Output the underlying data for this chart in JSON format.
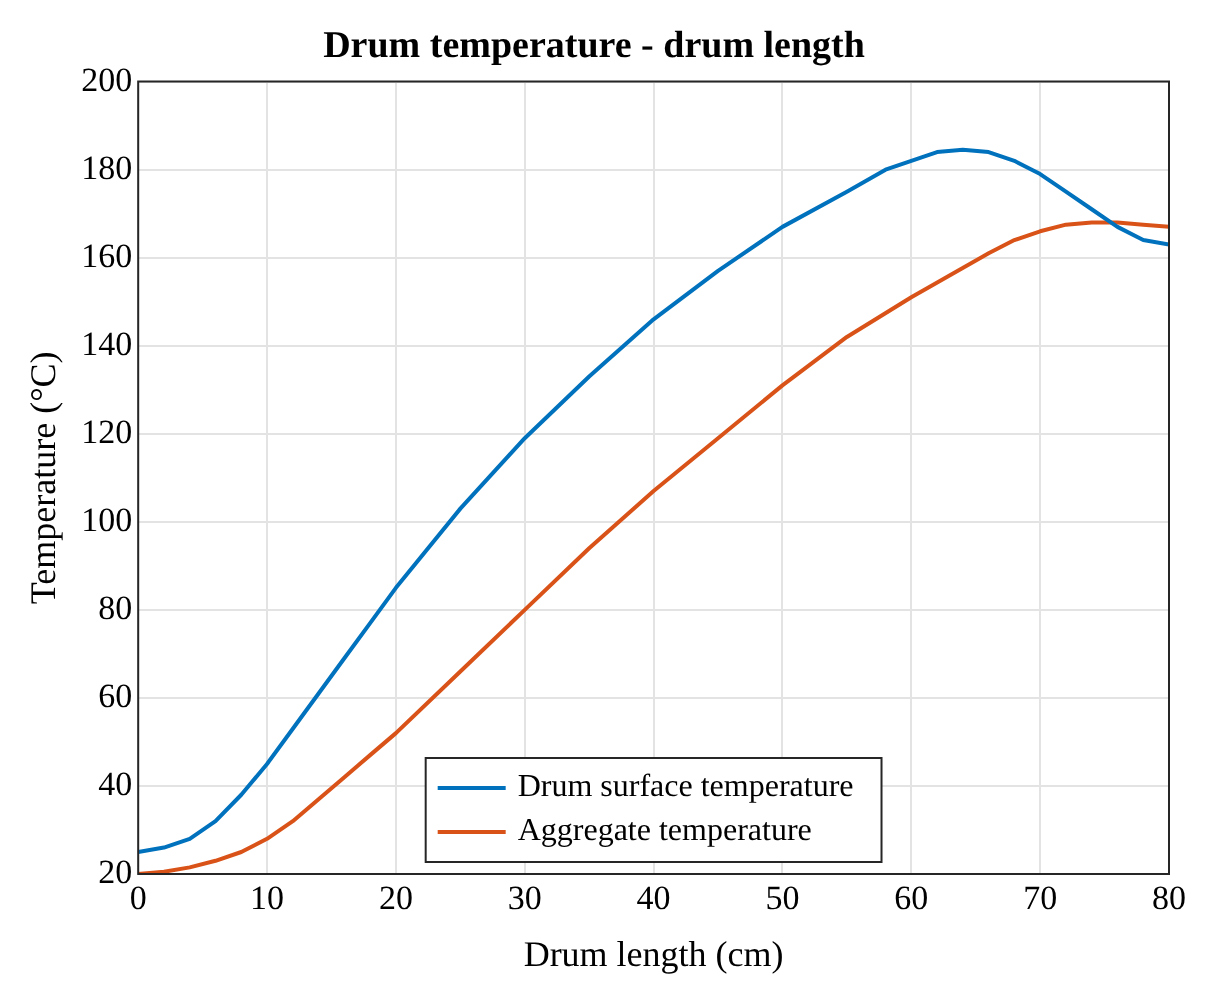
{
  "chart_data": {
    "type": "line",
    "title": "Drum temperature - drum length",
    "xlabel": "Drum length (cm)",
    "ylabel": "Temperature (°C)",
    "xlim": [
      0,
      80
    ],
    "xticks": [
      0,
      10,
      20,
      30,
      40,
      50,
      60,
      70,
      80
    ],
    "ylim": [
      20,
      200
    ],
    "yticks": [
      20,
      40,
      60,
      80,
      100,
      120,
      140,
      160,
      180,
      200
    ],
    "grid": true,
    "legend": "bottom",
    "marker": "none",
    "line_style": "solid",
    "series": [
      {
        "name": "Drum surface temperature",
        "color": "#0072bd",
        "x": [
          0,
          2,
          4,
          6,
          8,
          10,
          12,
          14,
          16,
          18,
          20,
          25,
          30,
          35,
          40,
          45,
          50,
          55,
          58,
          60,
          62,
          64,
          66,
          68,
          70,
          72,
          74,
          76,
          78,
          80
        ],
        "values": [
          25,
          26,
          28,
          32,
          38,
          45,
          53,
          61,
          69,
          77,
          85,
          103,
          119,
          133,
          146,
          157,
          167,
          175,
          180,
          182,
          184,
          184.5,
          184,
          182,
          179,
          175,
          171,
          167,
          164,
          163
        ]
      },
      {
        "name": "Aggregate temperature",
        "color": "#d95319",
        "x": [
          0,
          2,
          4,
          6,
          8,
          10,
          12,
          14,
          16,
          18,
          20,
          25,
          30,
          35,
          40,
          45,
          50,
          55,
          60,
          63,
          66,
          68,
          70,
          72,
          74,
          76,
          78,
          80
        ],
        "values": [
          20,
          20.5,
          21.5,
          23,
          25,
          28,
          32,
          37,
          42,
          47,
          52,
          66,
          80,
          94,
          107,
          119,
          131,
          142,
          151,
          156,
          161,
          164,
          166,
          167.5,
          168,
          168,
          167.5,
          167
        ]
      }
    ]
  }
}
